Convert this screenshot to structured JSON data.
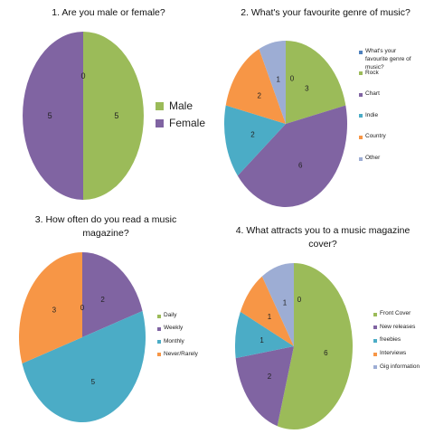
{
  "chart_data": [
    {
      "type": "pie",
      "title": "1. Are you male or female?",
      "categories": [
        "Male",
        "Female"
      ],
      "values": [
        5,
        5
      ],
      "colors": [
        "#9bbb59",
        "#8064a2"
      ],
      "extra_label": "0",
      "legend_placement": "right"
    },
    {
      "type": "pie",
      "title": "2. What's your favourite genre of music?",
      "categories": [
        "What's your favourite genre of music?",
        "Rock",
        "Chart",
        "Indie",
        "Country",
        "Other"
      ],
      "values": [
        0,
        3,
        6,
        2,
        2,
        1
      ],
      "colors": [
        "#4f81bd",
        "#9bbb59",
        "#8064a2",
        "#4bacc6",
        "#f79646",
        "#9dadd4"
      ],
      "legend_placement": "right"
    },
    {
      "type": "pie",
      "title": "3. How often do you read a music magazine?",
      "categories": [
        "Daily",
        "Weekly",
        "Monthly",
        "Never/Rarely"
      ],
      "values": [
        0,
        2,
        5,
        3
      ],
      "colors": [
        "#9bbb59",
        "#8064a2",
        "#4bacc6",
        "#f79646"
      ],
      "legend_placement": "right"
    },
    {
      "type": "pie",
      "title": "4. What attracts you to a music magazine cover?",
      "categories": [
        "Front Cover",
        "New releases",
        "freebies",
        "Interviews",
        "Gig information"
      ],
      "values": [
        6,
        2,
        1,
        1,
        1
      ],
      "colors": [
        "#9bbb59",
        "#8064a2",
        "#4bacc6",
        "#f79646",
        "#9dadd4"
      ],
      "extra_label": "0",
      "legend_placement": "right"
    }
  ]
}
